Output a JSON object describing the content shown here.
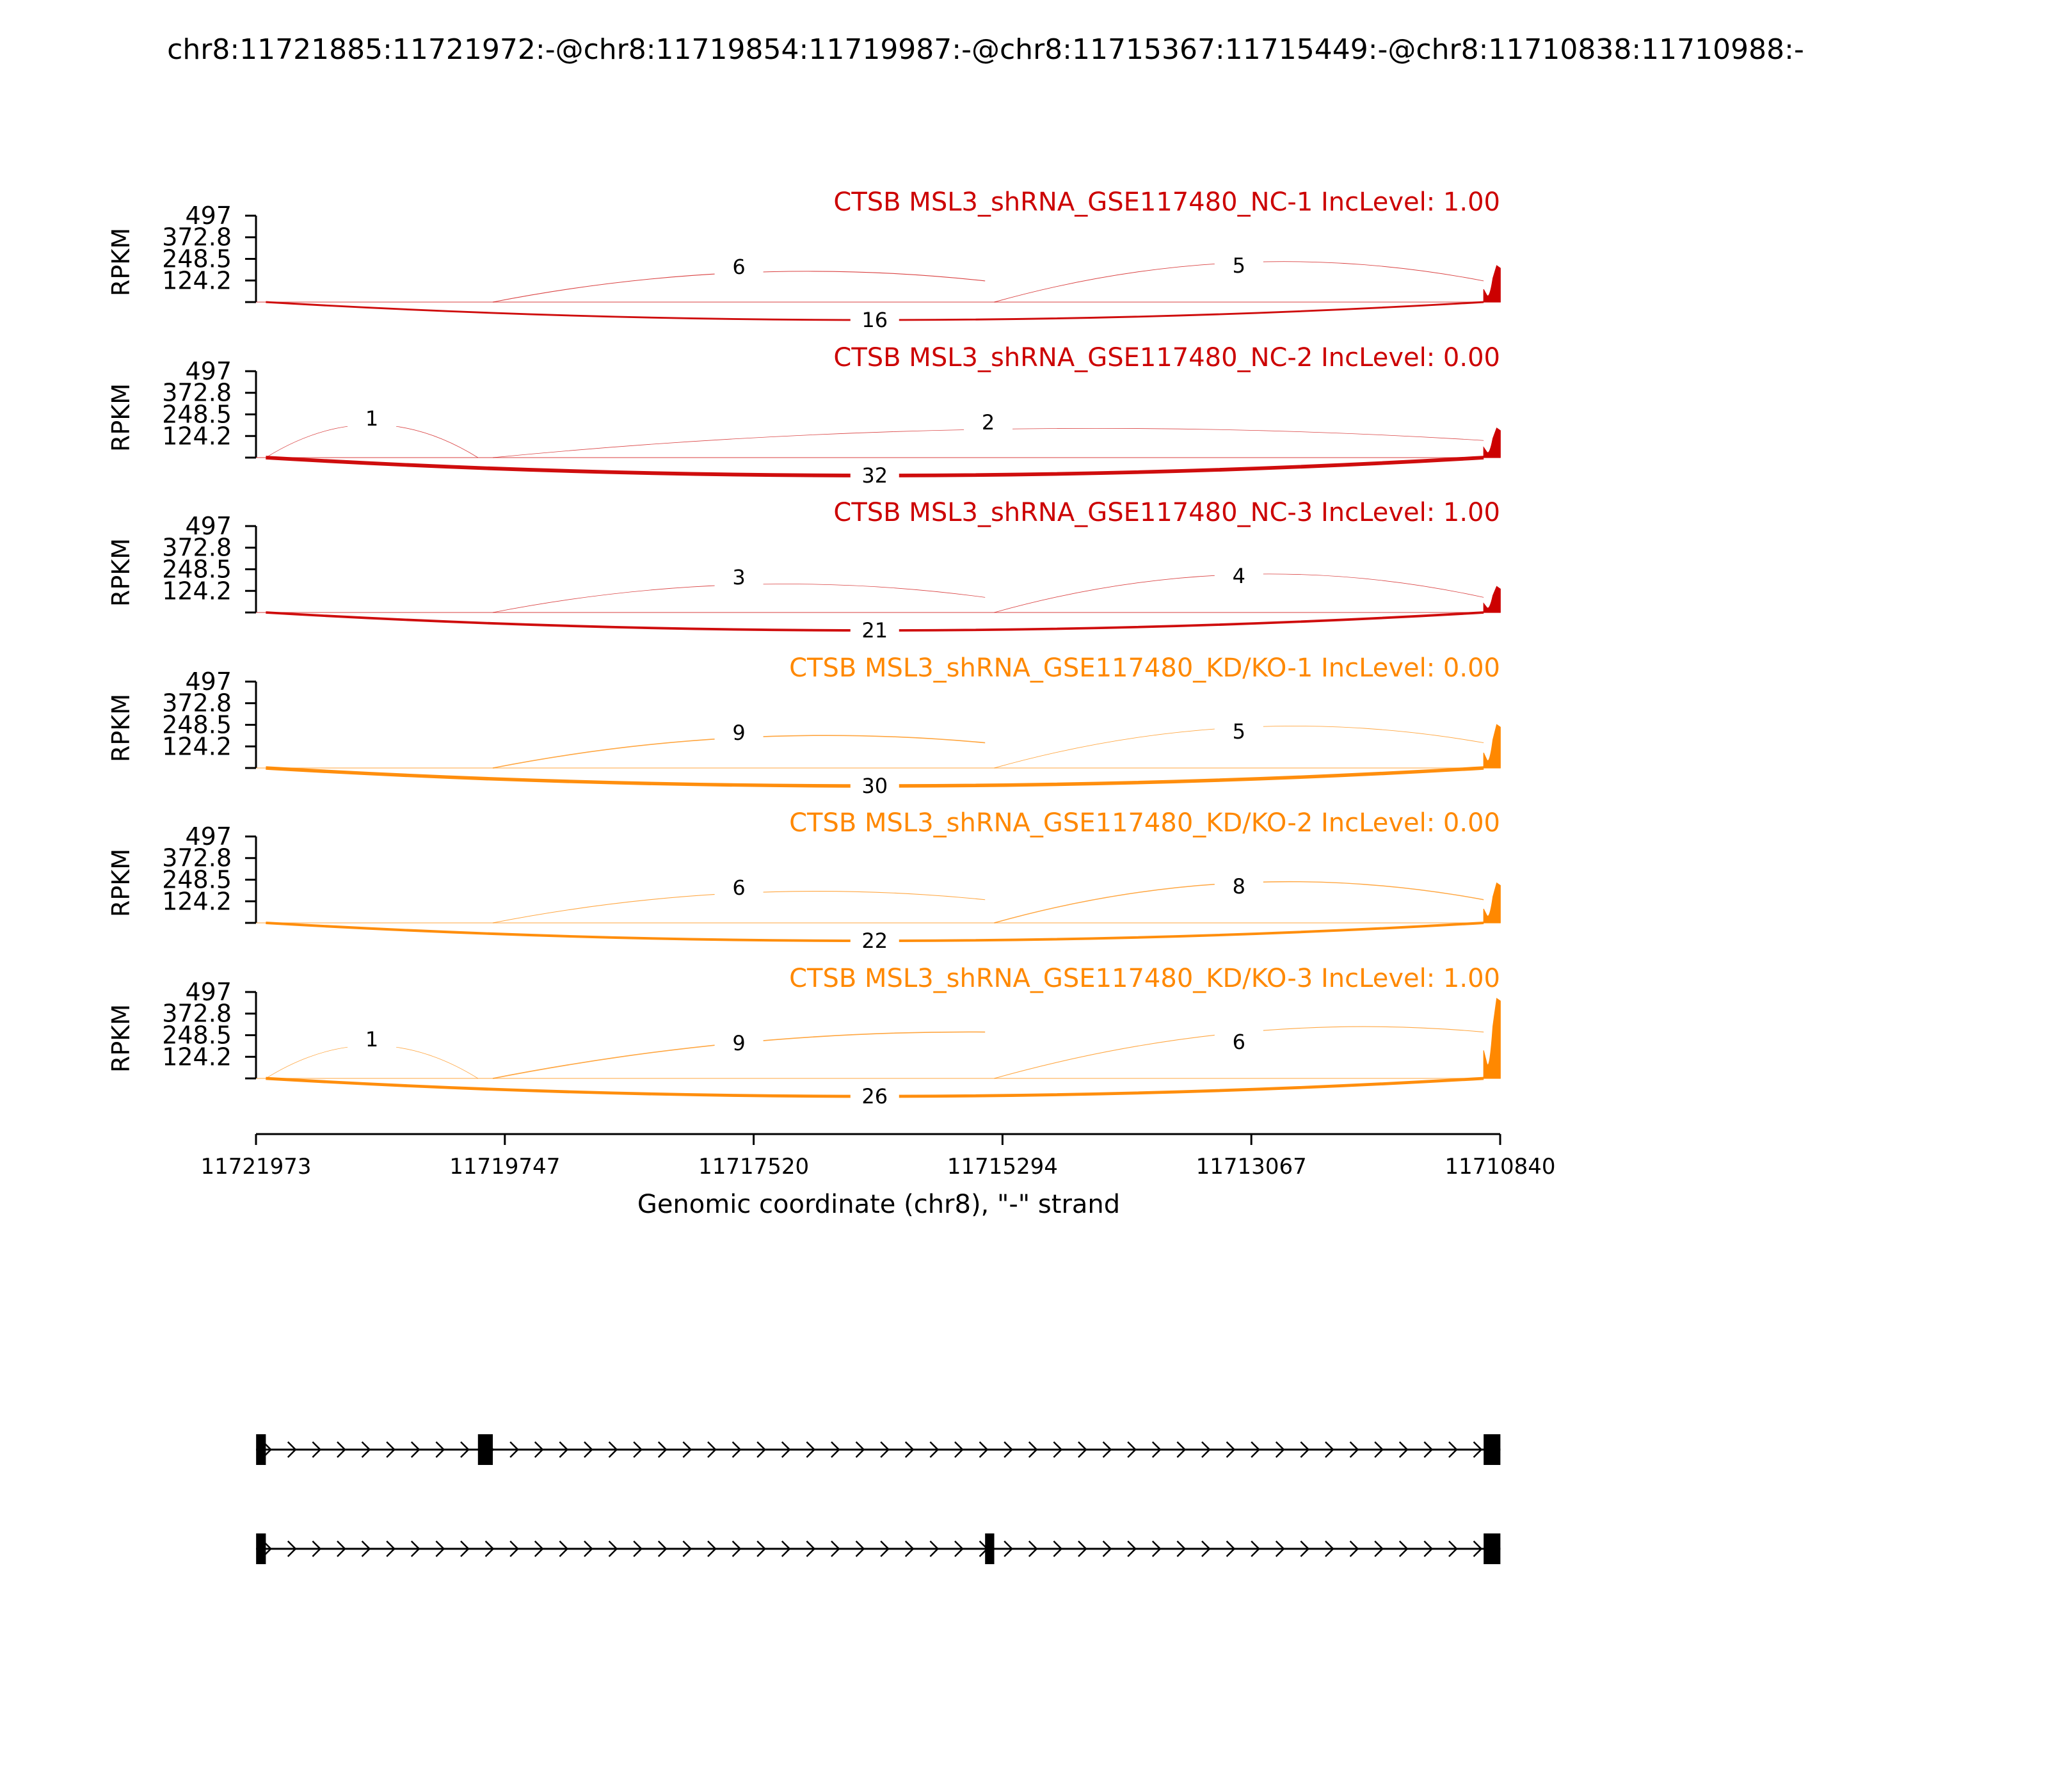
{
  "chart_data": {
    "type": "sashimi",
    "title": "chr8:11721885:11721972:-@chr8:11719854:11719987:-@chr8:11715367:11715449:-@chr8:11710838:11710988:-",
    "ylabel": "RPKM",
    "yticks": [
      "497",
      "372.8",
      "248.5",
      "124.2"
    ],
    "ylim": [
      0,
      497
    ],
    "xlabel": "Genomic coordinate (chr8), \"-\" strand",
    "xticks": [
      "11721973",
      "11719747",
      "11717520",
      "11715294",
      "11713067",
      "11710840"
    ],
    "xlim": [
      11721973,
      11710840
    ],
    "colors": {
      "nc": "#cc0000",
      "kd": "#ff8800"
    },
    "exons": [
      [
        11721885,
        11721972
      ],
      [
        11719854,
        11719987
      ],
      [
        11715367,
        11715449
      ],
      [
        11710838,
        11710988
      ]
    ],
    "samples": [
      {
        "label": "CTSB MSL3_shRNA_GSE117480_NC-1 IncLevel: 1.00",
        "group": "nc",
        "peaks": [
          0,
          0,
          0,
          210
        ],
        "junctions": [
          {
            "from": 11721885,
            "to": 11710988,
            "count": 16,
            "label": "16"
          },
          {
            "from": 11719854,
            "to": 11715449,
            "count": 6,
            "label": "6"
          },
          {
            "from": 11715367,
            "to": 11710988,
            "count": 5,
            "label": "5"
          }
        ]
      },
      {
        "label": "CTSB MSL3_shRNA_GSE117480_NC-2 IncLevel: 0.00",
        "group": "nc",
        "peaks": [
          0,
          0,
          0,
          170
        ],
        "junctions": [
          {
            "from": 11721885,
            "to": 11710988,
            "count": 32,
            "label": "32"
          },
          {
            "from": 11721885,
            "to": 11719987,
            "count": 1,
            "label": "1"
          },
          {
            "from": 11719854,
            "to": 11710988,
            "count": 2,
            "label": "2"
          }
        ]
      },
      {
        "label": "CTSB MSL3_shRNA_GSE117480_NC-3 IncLevel: 1.00",
        "group": "nc",
        "peaks": [
          0,
          0,
          0,
          150
        ],
        "junctions": [
          {
            "from": 11721885,
            "to": 11710988,
            "count": 21,
            "label": "21"
          },
          {
            "from": 11719854,
            "to": 11715449,
            "count": 3,
            "label": "3"
          },
          {
            "from": 11715367,
            "to": 11710988,
            "count": 4,
            "label": "4"
          }
        ]
      },
      {
        "label": "CTSB MSL3_shRNA_GSE117480_KD/KO-1 IncLevel: 0.00",
        "group": "kd",
        "peaks": [
          0,
          0,
          0,
          250
        ],
        "junctions": [
          {
            "from": 11721885,
            "to": 11710988,
            "count": 30,
            "label": "30"
          },
          {
            "from": 11719854,
            "to": 11715449,
            "count": 9,
            "label": "9"
          },
          {
            "from": 11715367,
            "to": 11710988,
            "count": 5,
            "label": "5"
          }
        ]
      },
      {
        "label": "CTSB MSL3_shRNA_GSE117480_KD/KO-2 IncLevel: 0.00",
        "group": "kd",
        "peaks": [
          0,
          0,
          0,
          230
        ],
        "junctions": [
          {
            "from": 11721885,
            "to": 11710988,
            "count": 22,
            "label": "22"
          },
          {
            "from": 11719854,
            "to": 11715449,
            "count": 6,
            "label": "6"
          },
          {
            "from": 11715367,
            "to": 11710988,
            "count": 8,
            "label": "8"
          }
        ]
      },
      {
        "label": "CTSB MSL3_shRNA_GSE117480_KD/KO-3 IncLevel: 1.00",
        "group": "kd",
        "peaks": [
          0,
          0,
          0,
          460
        ],
        "junctions": [
          {
            "from": 11721885,
            "to": 11710988,
            "count": 26,
            "label": "26"
          },
          {
            "from": 11721885,
            "to": 11719987,
            "count": 1,
            "label": "1"
          },
          {
            "from": 11719854,
            "to": 11715449,
            "count": 9,
            "label": "9"
          },
          {
            "from": 11715367,
            "to": 11710988,
            "count": 6,
            "label": "6"
          }
        ]
      }
    ],
    "transcripts": [
      {
        "exons": [
          [
            11721885,
            11721972
          ],
          [
            11719854,
            11719987
          ],
          [
            11710838,
            11710988
          ]
        ]
      },
      {
        "exons": [
          [
            11721885,
            11721972
          ],
          [
            11715367,
            11715449
          ],
          [
            11710838,
            11710988
          ]
        ]
      }
    ]
  }
}
